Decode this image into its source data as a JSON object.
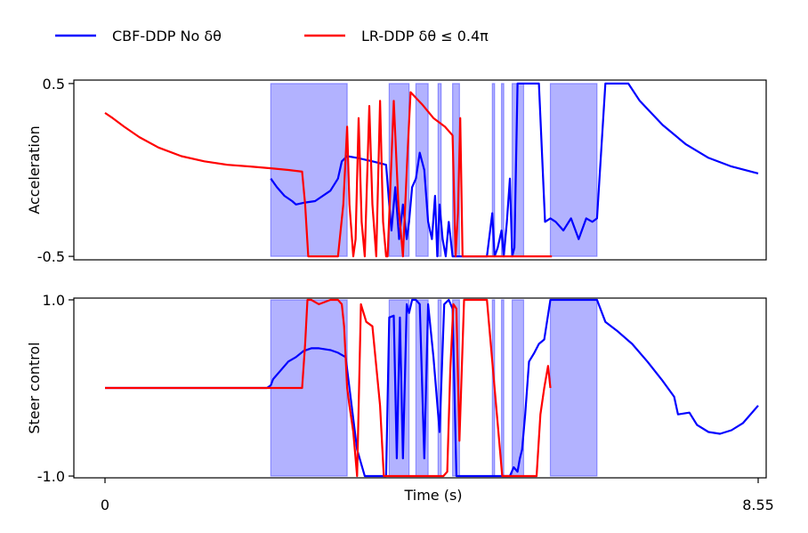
{
  "chart_data": {
    "type": "line",
    "legend": {
      "placement": "top-left",
      "entries": [
        {
          "label": "CBF-DDP No δθ",
          "color": "#0000ff"
        },
        {
          "label": "LR-DDP δθ ≤ 0.4π",
          "color": "#ff0000"
        }
      ]
    },
    "xlabel": "Time (s)",
    "xlim": [
      0,
      8.55
    ],
    "x_tick_labels": [
      "0",
      "8.55"
    ],
    "x_ticks": [
      0,
      8.55
    ],
    "shaded_color": "#0000ff",
    "shaded_intervals": [
      [
        2.17,
        3.17
      ],
      [
        3.72,
        3.98
      ],
      [
        4.07,
        4.23
      ],
      [
        4.36,
        4.4
      ],
      [
        4.55,
        4.64
      ],
      [
        5.07,
        5.1
      ],
      [
        5.19,
        5.22
      ],
      [
        5.33,
        5.48
      ],
      [
        5.83,
        6.44
      ]
    ],
    "panels": [
      {
        "id": "acceleration",
        "ylabel": "Acceleration",
        "ylim": [
          -0.52,
          0.52
        ],
        "y_ticks": [
          0.5,
          -0.5
        ],
        "y_tick_labels": [
          "0.5",
          "-0.5"
        ],
        "series": [
          {
            "name": "CBF-DDP No δθ",
            "color": "#0000ff",
            "x": [
              2.17,
              2.25,
              2.35,
              2.45,
              2.5,
              2.6,
              2.75,
              2.95,
              3.05,
              3.1,
              3.17,
              3.3,
              3.5,
              3.68,
              3.72,
              3.75,
              3.8,
              3.85,
              3.9,
              3.95,
              3.98,
              4.02,
              4.07,
              4.12,
              4.18,
              4.23,
              4.28,
              4.32,
              4.35,
              4.38,
              4.42,
              4.46,
              4.5,
              4.55,
              4.6,
              4.65,
              4.75,
              4.85,
              5.0,
              5.07,
              5.1,
              5.14,
              5.19,
              5.22,
              5.26,
              5.3,
              5.33,
              5.36,
              5.4,
              5.48,
              5.55,
              5.62,
              5.68,
              5.76,
              5.83,
              5.9,
              6.0,
              6.1,
              6.2,
              6.3,
              6.38,
              6.44,
              6.55,
              6.7,
              6.85,
              7.0,
              7.3,
              7.6,
              7.9,
              8.2,
              8.55
            ],
            "y": [
              -0.05,
              -0.1,
              -0.15,
              -0.18,
              -0.2,
              -0.19,
              -0.18,
              -0.12,
              -0.05,
              0.05,
              0.08,
              0.07,
              0.05,
              0.03,
              -0.2,
              -0.35,
              -0.1,
              -0.4,
              -0.2,
              -0.4,
              -0.3,
              -0.1,
              -0.05,
              0.1,
              0.0,
              -0.3,
              -0.4,
              -0.15,
              -0.5,
              -0.2,
              -0.4,
              -0.5,
              -0.3,
              -0.5,
              -0.5,
              -0.5,
              -0.5,
              -0.5,
              -0.5,
              -0.25,
              -0.5,
              -0.45,
              -0.35,
              -0.5,
              -0.3,
              -0.05,
              -0.5,
              -0.45,
              0.5,
              0.5,
              0.5,
              0.5,
              0.5,
              -0.3,
              -0.28,
              -0.3,
              -0.35,
              -0.28,
              -0.4,
              -0.28,
              -0.3,
              -0.28,
              0.5,
              0.5,
              0.5,
              0.4,
              0.26,
              0.15,
              0.07,
              0.02,
              -0.02
            ]
          },
          {
            "name": "LR-DDP δθ ≤ 0.4π",
            "color": "#ff0000",
            "x": [
              0,
              0.1,
              0.25,
              0.45,
              0.7,
              1.0,
              1.3,
              1.6,
              1.9,
              2.17,
              2.4,
              2.58,
              2.62,
              2.66,
              2.7,
              2.9,
              3.05,
              3.12,
              3.17,
              3.2,
              3.25,
              3.28,
              3.32,
              3.36,
              3.4,
              3.46,
              3.5,
              3.55,
              3.6,
              3.64,
              3.68,
              3.7,
              3.78,
              3.84,
              3.9,
              3.96,
              4.0,
              4.15,
              4.3,
              4.45,
              4.55,
              4.59,
              4.62,
              4.65,
              4.68,
              4.75,
              4.85,
              5.0,
              5.1,
              5.2,
              5.35,
              5.45,
              5.52,
              5.55,
              5.63,
              5.68,
              5.72,
              5.75,
              5.78,
              5.82,
              5.85
            ],
            "y": [
              0.33,
              0.3,
              0.25,
              0.19,
              0.13,
              0.08,
              0.05,
              0.03,
              0.02,
              0.01,
              0.0,
              -0.01,
              -0.2,
              -0.5,
              -0.5,
              -0.5,
              -0.5,
              -0.2,
              0.25,
              -0.2,
              -0.5,
              -0.4,
              0.3,
              -0.3,
              -0.5,
              0.37,
              -0.2,
              -0.5,
              0.4,
              -0.3,
              -0.5,
              -0.5,
              0.4,
              -0.2,
              -0.5,
              0.1,
              0.45,
              0.38,
              0.3,
              0.25,
              0.2,
              -0.5,
              -0.25,
              0.3,
              -0.5,
              -0.5,
              -0.5,
              -0.5,
              -0.5,
              -0.5,
              -0.5,
              -0.5,
              -0.5,
              -0.5,
              -0.5,
              -0.5,
              -0.5,
              -0.5,
              -0.5,
              -0.5,
              -0.5
            ]
          }
        ]
      },
      {
        "id": "steer",
        "ylabel": "Steer control",
        "ylim": [
          -1.02,
          1.02
        ],
        "y_ticks": [
          1.0,
          -1.0
        ],
        "y_tick_labels": [
          "1.0",
          "-1.0"
        ],
        "series": [
          {
            "name": "CBF-DDP No δθ",
            "color": "#0000ff",
            "x": [
              0,
              2.12,
              2.17,
              2.2,
              2.3,
              2.4,
              2.5,
              2.6,
              2.7,
              2.8,
              2.95,
              3.05,
              3.15,
              3.2,
              3.3,
              3.4,
              3.45,
              3.5,
              3.55,
              3.6,
              3.68,
              3.72,
              3.78,
              3.82,
              3.86,
              3.9,
              3.95,
              3.98,
              4.02,
              4.07,
              4.12,
              4.18,
              4.23,
              4.3,
              4.38,
              4.44,
              4.5,
              4.55,
              4.6,
              4.75,
              4.9,
              5.1,
              5.3,
              5.35,
              5.4,
              5.43,
              5.46,
              5.5,
              5.55,
              5.62,
              5.68,
              5.75,
              5.83,
              5.95,
              6.1,
              6.3,
              6.44,
              6.55,
              6.7,
              6.9,
              7.1,
              7.3,
              7.45,
              7.5,
              7.65,
              7.75,
              7.9,
              8.05,
              8.2,
              8.35,
              8.55
            ],
            "y": [
              0.0,
              0.0,
              0.03,
              0.1,
              0.2,
              0.3,
              0.35,
              0.42,
              0.45,
              0.45,
              0.43,
              0.4,
              0.35,
              0.0,
              -0.7,
              -1.0,
              -1.0,
              -1.0,
              -1.0,
              -1.0,
              -1.0,
              0.8,
              0.82,
              -0.8,
              0.8,
              -0.8,
              0.95,
              0.85,
              1.0,
              1.0,
              0.95,
              -0.8,
              0.95,
              0.35,
              -0.5,
              0.95,
              1.0,
              0.9,
              -1.0,
              -1.0,
              -1.0,
              -1.0,
              -1.0,
              -0.9,
              -0.95,
              -0.8,
              -0.7,
              -0.3,
              0.3,
              0.4,
              0.5,
              0.55,
              1.0,
              1.0,
              1.0,
              1.0,
              1.0,
              0.75,
              0.65,
              0.5,
              0.3,
              0.08,
              -0.1,
              -0.3,
              -0.28,
              -0.42,
              -0.5,
              -0.52,
              -0.48,
              -0.4,
              -0.2
            ]
          },
          {
            "name": "LR-DDP δθ ≤ 0.4π",
            "color": "#ff0000",
            "x": [
              0,
              0.5,
              1.0,
              1.5,
              2.0,
              2.4,
              2.58,
              2.62,
              2.65,
              2.7,
              2.8,
              2.95,
              3.05,
              3.1,
              3.13,
              3.17,
              3.2,
              3.25,
              3.3,
              3.35,
              3.42,
              3.5,
              3.6,
              3.65,
              3.72,
              3.8,
              3.9,
              3.98,
              4.05,
              4.15,
              4.25,
              4.35,
              4.43,
              4.48,
              4.52,
              4.56,
              4.6,
              4.64,
              4.7,
              4.85,
              5.0,
              5.2,
              5.35,
              5.5,
              5.55,
              5.6,
              5.65,
              5.7,
              5.75,
              5.8,
              5.83
            ],
            "y": [
              0.0,
              0.0,
              0.0,
              0.0,
              0.0,
              0.0,
              0.0,
              0.5,
              1.0,
              1.0,
              0.95,
              1.0,
              1.0,
              0.95,
              0.7,
              0.0,
              -0.2,
              -0.5,
              -1.0,
              0.95,
              0.75,
              0.7,
              -0.2,
              -1.0,
              -1.0,
              -1.0,
              -1.0,
              -1.0,
              -1.0,
              -1.0,
              -1.0,
              -1.0,
              -1.0,
              -0.95,
              0.2,
              0.95,
              0.9,
              -0.6,
              1.0,
              1.0,
              1.0,
              -1.0,
              -1.0,
              -1.0,
              -1.0,
              -1.0,
              -1.0,
              -0.3,
              0.0,
              0.25,
              0.0
            ]
          }
        ]
      }
    ]
  }
}
